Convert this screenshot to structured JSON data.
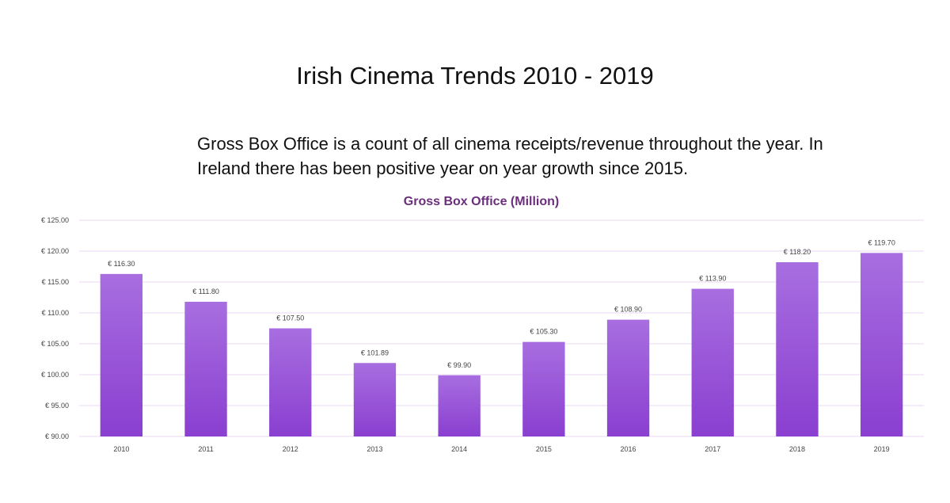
{
  "slide": {
    "title": "Irish Cinema Trends 2010 - 2019",
    "description": "Gross Box Office is a count of all cinema receipts/revenue throughout the year. In Ireland there has been positive year on year growth since 2015."
  },
  "colors": {
    "title": "#6b2f7d",
    "bar_top": "#a86ee0",
    "bar_bottom": "#8a3fd0",
    "grid": "#ead9f2"
  },
  "chart_data": {
    "type": "bar",
    "title": "Gross Box Office (Million)",
    "xlabel": "",
    "ylabel": "",
    "ylim": [
      90,
      125
    ],
    "yticks": [
      90,
      95,
      100,
      105,
      110,
      115,
      120,
      125
    ],
    "ytick_labels": [
      "€ 90.00",
      "€ 95.00",
      "€ 100.00",
      "€ 105.00",
      "€ 110.00",
      "€ 115.00",
      "€ 120.00",
      "€ 125.00"
    ],
    "categories": [
      "2010",
      "2011",
      "2012",
      "2013",
      "2014",
      "2015",
      "2016",
      "2017",
      "2018",
      "2019"
    ],
    "values": [
      116.3,
      111.8,
      107.5,
      101.89,
      99.9,
      105.3,
      108.9,
      113.9,
      118.2,
      119.7
    ],
    "data_labels": [
      "€ 116.30",
      "€ 111.80",
      "€ 107.50",
      "€ 101.89",
      "€ 99.90",
      "€ 105.30",
      "€ 108.90",
      "€ 113.90",
      "€ 118.20",
      "€ 119.70"
    ],
    "grid": true,
    "legend": "none"
  }
}
